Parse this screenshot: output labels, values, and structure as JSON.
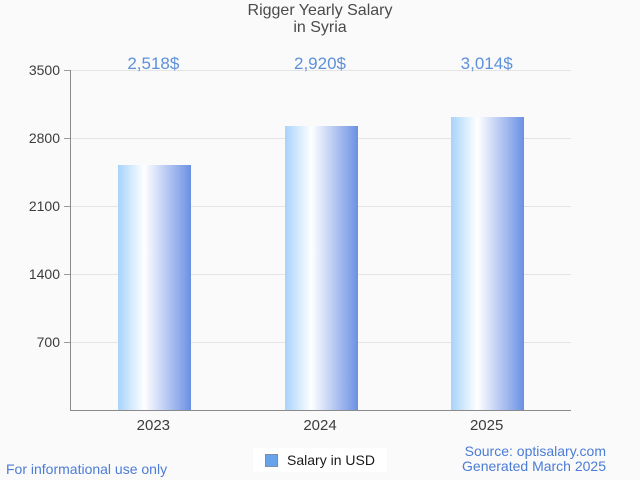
{
  "title": {
    "line1": "Rigger Yearly Salary",
    "line2": "in Syria"
  },
  "legend": {
    "label": "Salary in USD"
  },
  "footer": {
    "disclaimer": "For informational use only",
    "source": "Source: optisalary.com",
    "generated": "Generated March 2025"
  },
  "colors": {
    "background": "#FAFAFA",
    "title_text": "#4A4A4A",
    "axis_line": "#8A8A8A",
    "gridline": "#E4E4E4",
    "axis_label_text": "#3C3C3C",
    "value_label_text": "#5E90DA",
    "footer_text": "#4B7CD6",
    "legend_swatch_fill": "#67A3EB",
    "legend_swatch_border": "#7E8EA4",
    "bar_gradient_left": "#A7D3FB",
    "bar_gradient_highlight": "#FFFFFF",
    "bar_gradient_right": "#6B90E4"
  },
  "chart_data": {
    "type": "bar",
    "title": "Rigger Yearly Salary in Syria",
    "categories": [
      "2023",
      "2024",
      "2025"
    ],
    "values": [
      2518,
      2920,
      3014
    ],
    "value_labels": [
      "2,518$",
      "2,920$",
      "3,014$"
    ],
    "series_name": "Salary in USD",
    "xlabel": "",
    "ylabel": "",
    "ylim": [
      0,
      3500
    ],
    "yticks": [
      700,
      1400,
      2100,
      2800,
      3500
    ],
    "grid": true,
    "legend_position": "bottom",
    "bar_gradient_direction": "left-to-right"
  }
}
